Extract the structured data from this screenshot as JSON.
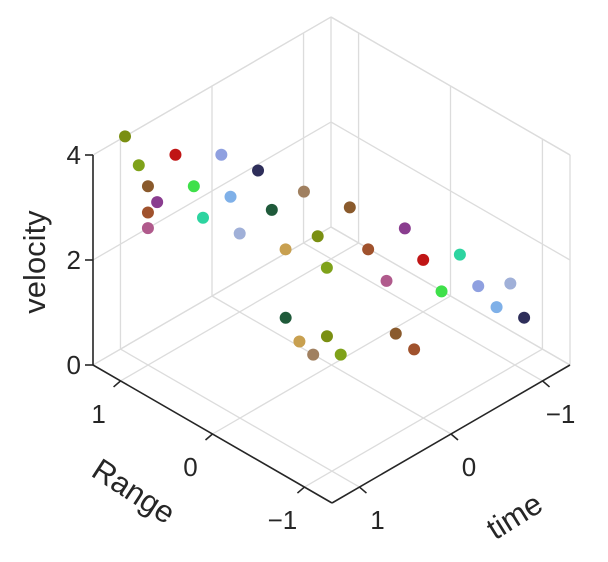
{
  "chart_data": {
    "type": "scatter",
    "projection": "3d",
    "xlabel": "time",
    "ylabel": "Range",
    "zlabel": "velocity",
    "xlim": [
      -1.3,
      1.3
    ],
    "ylim": [
      -1.3,
      1.3
    ],
    "zlim": [
      0,
      4
    ],
    "xticks": [
      1,
      0,
      -1
    ],
    "yticks": [
      1,
      0,
      -1
    ],
    "zticks": [
      4,
      2,
      0
    ],
    "xtick_labels": [
      "1",
      "0",
      "−1"
    ],
    "ytick_labels": [
      "1",
      "0",
      "−1"
    ],
    "ztick_labels": [
      "4",
      "2",
      "0"
    ],
    "grid": true,
    "legend": "none",
    "colors": [
      "#7a8f12",
      "#7fa21a",
      "#8a5a2c",
      "#a0522d",
      "#b05a8c",
      "#8a3d8f",
      "#c01515",
      "#3fe04a",
      "#2dd4a0",
      "#8fa0e0",
      "#7fb0e8",
      "#a0b0d8",
      "#2e2e5a",
      "#1f5a3a",
      "#c8a050",
      "#a08060"
    ],
    "series": [
      {
        "values": [
          [
            0.9,
            1.35,
            3.9
          ],
          [
            0.85,
            1.25,
            3.4
          ],
          [
            0.8,
            1.2,
            3.0
          ],
          [
            0.75,
            1.25,
            2.4
          ],
          [
            0.7,
            1.3,
            2.0
          ],
          [
            0.8,
            1.1,
            2.8
          ],
          [
            0.6,
            1.1,
            3.5
          ],
          [
            0.55,
            0.95,
            3.0
          ],
          [
            0.5,
            0.9,
            2.4
          ],
          [
            0.4,
            0.8,
            3.6
          ],
          [
            0.35,
            0.75,
            2.8
          ],
          [
            0.3,
            0.7,
            2.1
          ],
          [
            0.2,
            0.6,
            3.3
          ],
          [
            0.15,
            0.5,
            2.6
          ],
          [
            0.1,
            0.4,
            1.9
          ],
          [
            0.0,
            0.3,
            3.0
          ],
          [
            -0.05,
            0.2,
            2.2
          ],
          [
            -0.1,
            0.15,
            1.6
          ],
          [
            -0.2,
            0.0,
            2.8
          ],
          [
            -0.3,
            -0.1,
            2.0
          ],
          [
            -0.4,
            -0.2,
            1.4
          ],
          [
            -0.5,
            -0.3,
            2.4
          ],
          [
            -0.6,
            -0.4,
            1.8
          ],
          [
            -0.7,
            -0.5,
            1.2
          ],
          [
            -0.8,
            -0.6,
            1.9
          ],
          [
            -0.9,
            -0.7,
            1.3
          ],
          [
            -1.0,
            -0.8,
            0.9
          ],
          [
            -1.05,
            -0.9,
            1.4
          ],
          [
            -1.1,
            -1.0,
            0.8
          ],
          [
            0.3,
            0.2,
            1.0
          ],
          [
            0.25,
            0.1,
            0.6
          ],
          [
            0.2,
            0.0,
            0.4
          ],
          [
            0.15,
            -0.1,
            0.8
          ],
          [
            0.1,
            -0.2,
            0.5
          ],
          [
            -0.2,
            -0.5,
            0.9
          ],
          [
            -0.3,
            -0.6,
            0.6
          ]
        ]
      }
    ]
  }
}
